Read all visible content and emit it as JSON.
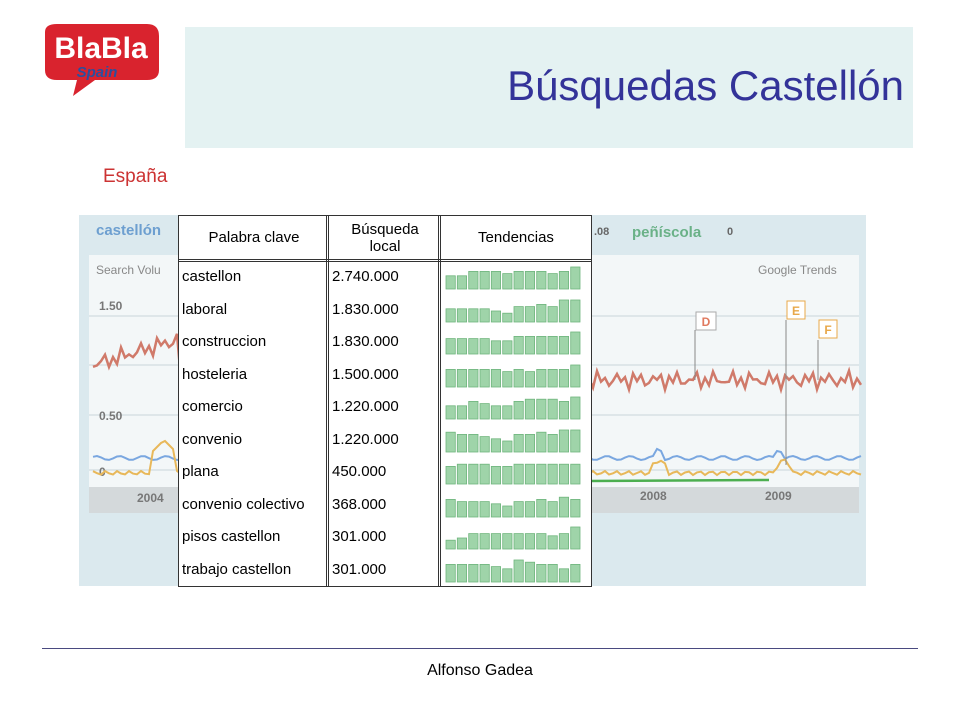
{
  "logo": {
    "name": "BlaBla",
    "tag": "Spain"
  },
  "header": {
    "title": "Búsquedas Castellón"
  },
  "subtitle": "España",
  "background_chart": {
    "legend": [
      "castellón",
      "peñíscola"
    ],
    "legend_values": [
      ".08",
      "0"
    ],
    "axis_label": "Search Volu",
    "source": "Google Trends",
    "yticks": [
      "1.50",
      "0.50",
      "0"
    ],
    "years": [
      "2004",
      "2008",
      "2009"
    ],
    "markers": [
      "D",
      "E",
      "F"
    ]
  },
  "table": {
    "headers": [
      "Palabra clave",
      "Búsqueda local",
      "Tendencias"
    ],
    "rows": [
      {
        "keyword": "castellon",
        "local": "2.740.000",
        "trend": [
          6,
          6,
          8,
          8,
          8,
          7,
          8,
          8,
          8,
          7,
          8,
          10
        ]
      },
      {
        "keyword": "laboral",
        "local": "1.830.000",
        "trend": [
          6,
          6,
          6,
          6,
          5,
          4,
          7,
          7,
          8,
          7,
          10,
          10
        ]
      },
      {
        "keyword": "construccion",
        "local": "1.830.000",
        "trend": [
          7,
          7,
          7,
          7,
          6,
          6,
          8,
          8,
          8,
          8,
          8,
          10
        ]
      },
      {
        "keyword": "hosteleria",
        "local": "1.500.000",
        "trend": [
          8,
          8,
          8,
          8,
          8,
          7,
          8,
          7,
          8,
          8,
          8,
          10
        ]
      },
      {
        "keyword": "comercio",
        "local": "1.220.000",
        "trend": [
          6,
          6,
          8,
          7,
          6,
          6,
          8,
          9,
          9,
          9,
          8,
          10
        ]
      },
      {
        "keyword": "convenio",
        "local": "1.220.000",
        "trend": [
          9,
          8,
          8,
          7,
          6,
          5,
          8,
          8,
          9,
          8,
          10,
          10
        ]
      },
      {
        "keyword": "plana",
        "local": "450.000",
        "trend": [
          8,
          9,
          9,
          9,
          8,
          8,
          9,
          9,
          9,
          9,
          9,
          9
        ]
      },
      {
        "keyword": "convenio colectivo",
        "local": "368.000",
        "trend": [
          8,
          7,
          7,
          7,
          6,
          5,
          7,
          7,
          8,
          7,
          9,
          8
        ]
      },
      {
        "keyword": "pisos castellon",
        "local": "301.000",
        "trend": [
          4,
          5,
          7,
          7,
          7,
          7,
          7,
          7,
          7,
          6,
          7,
          10
        ]
      },
      {
        "keyword": "trabajo castellon",
        "local": "301.000",
        "trend": [
          8,
          8,
          8,
          8,
          7,
          6,
          10,
          9,
          8,
          8,
          6,
          8
        ]
      }
    ]
  },
  "footer": "Alfonso Gadea"
}
